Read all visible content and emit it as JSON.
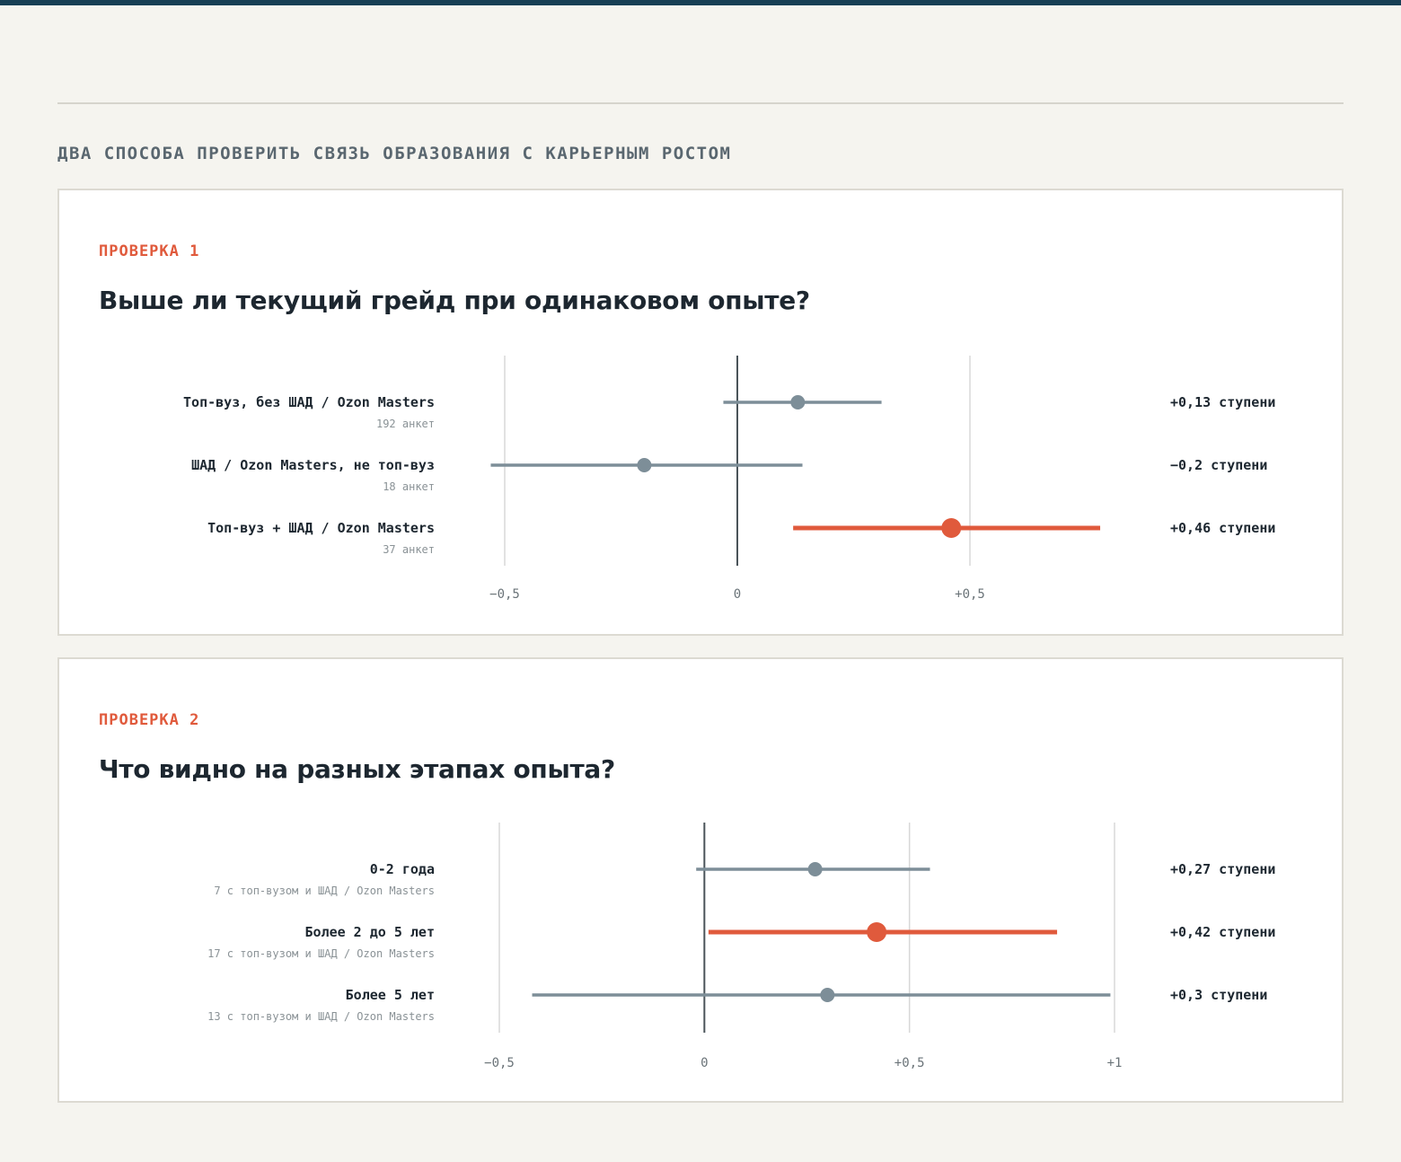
{
  "section_heading": "ДВА СПОСОБА ПРОВЕРИТЬ СВЯЗЬ ОБРАЗОВАНИЯ С КАРЬЕРНЫМ РОСТОМ",
  "colors": {
    "accent": "#e05a3c",
    "neutral": "#7d8e98",
    "zero_line": "#4a5459",
    "grid": "#d8d8d8"
  },
  "chart_data": [
    {
      "type": "forest",
      "eyebrow": "ПРОВЕРКА 1",
      "title": "Выше ли текущий грейд при одинаковом опыте?",
      "xlim": [
        -0.5,
        0.5
      ],
      "ticks": [
        {
          "value": -0.5,
          "label": "−0,5"
        },
        {
          "value": 0,
          "label": "0"
        },
        {
          "value": 0.5,
          "label": "+0,5"
        }
      ],
      "rows": [
        {
          "label": "Топ-вуз, без ШАД / Ozon Masters",
          "sublabel": "192 анкет",
          "estimate": 0.13,
          "ci": [
            -0.03,
            0.31
          ],
          "value_label": "+0,13 ступени",
          "highlight": false
        },
        {
          "label": "ШАД / Ozon Masters, не топ-вуз",
          "sublabel": "18 анкет",
          "estimate": -0.2,
          "ci": [
            -0.53,
            0.14
          ],
          "value_label": "−0,2 ступени",
          "highlight": false
        },
        {
          "label": "Топ-вуз + ШАД / Ozon Masters",
          "sublabel": "37 анкет",
          "estimate": 0.46,
          "ci": [
            0.12,
            0.78
          ],
          "value_label": "+0,46 ступени",
          "highlight": true
        }
      ]
    },
    {
      "type": "forest",
      "eyebrow": "ПРОВЕРКА 2",
      "title": "Что видно на разных этапах опыта?",
      "xlim": [
        -0.5,
        1
      ],
      "ticks": [
        {
          "value": -0.5,
          "label": "−0,5"
        },
        {
          "value": 0,
          "label": "0"
        },
        {
          "value": 0.5,
          "label": "+0,5"
        },
        {
          "value": 1,
          "label": "+1"
        }
      ],
      "rows": [
        {
          "label": "0-2 года",
          "sublabel": "7 с топ-вузом и ШАД / Ozon Masters",
          "estimate": 0.27,
          "ci": [
            -0.02,
            0.55
          ],
          "value_label": "+0,27 ступени",
          "highlight": false
        },
        {
          "label": "Более 2 до 5 лет",
          "sublabel": "17 с топ-вузом и ШАД / Ozon Masters",
          "estimate": 0.42,
          "ci": [
            0.01,
            0.86
          ],
          "value_label": "+0,42 ступени",
          "highlight": true
        },
        {
          "label": "Более 5 лет",
          "sublabel": "13 с топ-вузом и ШАД / Ozon Masters",
          "estimate": 0.3,
          "ci": [
            -0.42,
            0.99
          ],
          "value_label": "+0,3 ступени",
          "highlight": false
        }
      ]
    }
  ]
}
